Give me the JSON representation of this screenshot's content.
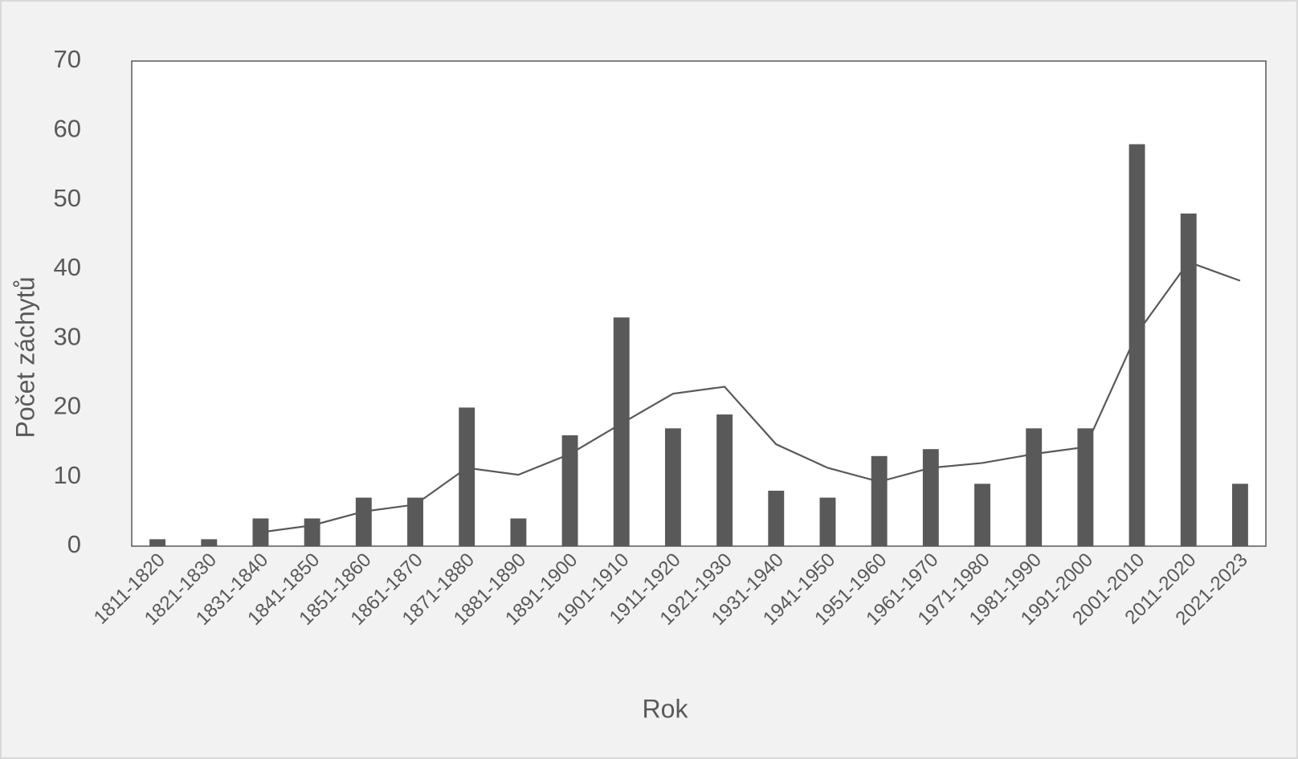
{
  "chart_data": {
    "type": "bar",
    "x_label": "Rok",
    "y_label": "Počet záchytů",
    "categories": [
      "1811-1820",
      "1821-1830",
      "1831-1840",
      "1841-1850",
      "1851-1860",
      "1861-1870",
      "1871-1880",
      "1881-1890",
      "1891-1900",
      "1901-1910",
      "1911-1920",
      "1921-1930",
      "1931-1940",
      "1941-1950",
      "1951-1960",
      "1961-1970",
      "1971-1980",
      "1981-1990",
      "1991-2000",
      "2001-2010",
      "2011-2020",
      "2021-2023"
    ],
    "series": [
      {
        "type": "bar",
        "color": "#595959",
        "values": [
          1,
          1,
          4,
          4,
          7,
          7,
          20,
          4,
          16,
          33,
          17,
          19,
          8,
          7,
          13,
          14,
          9,
          17,
          17,
          58,
          48,
          9
        ]
      },
      {
        "type": "line",
        "color": "#595959",
        "values": [
          null,
          null,
          2,
          3,
          5,
          6,
          11.3,
          10.3,
          13.3,
          17.7,
          22,
          23,
          14.7,
          11.3,
          9.3,
          11.3,
          12,
          13.3,
          14.3,
          30.7,
          41,
          38.3
        ]
      }
    ],
    "ylim": [
      0,
      70
    ],
    "yticks": [
      0,
      10,
      20,
      30,
      40,
      50,
      60,
      70
    ]
  }
}
